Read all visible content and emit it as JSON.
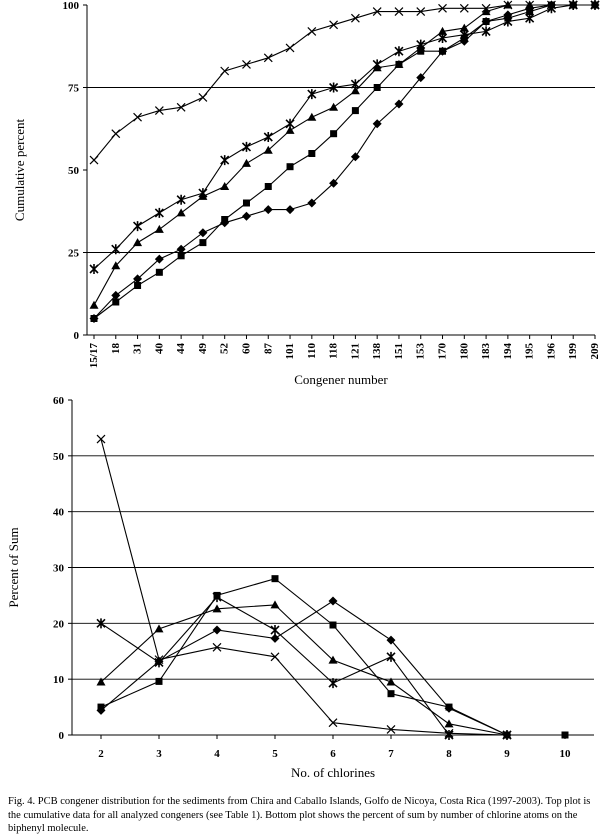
{
  "chart_data": [
    {
      "type": "line",
      "title": "",
      "xlabel": "Congener  number",
      "ylabel": "Cumulative percent",
      "ylim": [
        0,
        100
      ],
      "yticks": [
        "0",
        "25",
        "50",
        "75",
        "100"
      ],
      "grid": "horizontal lines at 25 and 75",
      "categories": [
        "15/17",
        "18",
        "31",
        "40",
        "44",
        "49",
        "52",
        "60",
        "87",
        "101",
        "110",
        "118",
        "121",
        "138",
        "151",
        "153",
        "170",
        "180",
        "183",
        "194",
        "195",
        "196",
        "199",
        "209"
      ],
      "series": [
        {
          "marker": "x",
          "values": [
            53,
            61,
            66,
            68,
            69,
            72,
            80,
            82,
            84,
            87,
            92,
            94,
            96,
            98,
            98,
            98,
            99,
            99,
            99,
            100,
            100,
            100,
            100,
            100
          ]
        },
        {
          "marker": "asterisk",
          "values": [
            20,
            26,
            33,
            37,
            41,
            43,
            53,
            57,
            60,
            64,
            73,
            75,
            76,
            82,
            86,
            88,
            90,
            91,
            92,
            95,
            96,
            99,
            100,
            100
          ]
        },
        {
          "marker": "triangle",
          "values": [
            9,
            21,
            28,
            32,
            37,
            42,
            45,
            52,
            56,
            62,
            66,
            69,
            74,
            81,
            82,
            87,
            92,
            93,
            98,
            100,
            100,
            100,
            100,
            100
          ]
        },
        {
          "marker": "square",
          "values": [
            5,
            10,
            15,
            19,
            24,
            28,
            35,
            40,
            45,
            51,
            55,
            61,
            68,
            75,
            82,
            86,
            86,
            90,
            95,
            96,
            98,
            100,
            100,
            100
          ]
        },
        {
          "marker": "diamond",
          "values": [
            5,
            12,
            17,
            23,
            26,
            31,
            34,
            36,
            38,
            38,
            40,
            46,
            54,
            64,
            70,
            78,
            86,
            89,
            95,
            97,
            99,
            100,
            100,
            100
          ]
        }
      ]
    },
    {
      "type": "line",
      "title": "",
      "xlabel": "No. of chlorines",
      "ylabel": "Percent of Sum",
      "ylim": [
        0,
        60
      ],
      "yticks": [
        "0",
        "10",
        "20",
        "30",
        "40",
        "50",
        "60"
      ],
      "grid": "horizontal lines every 10",
      "categories": [
        "2",
        "3",
        "4",
        "5",
        "6",
        "7",
        "8",
        "9",
        "10"
      ],
      "series": [
        {
          "marker": "x",
          "values": [
            53,
            13.5,
            15.7,
            14,
            2.2,
            1,
            0.3,
            0,
            null
          ]
        },
        {
          "marker": "asterisk",
          "values": [
            20,
            13,
            24.7,
            18.8,
            9.3,
            14,
            0,
            0,
            null
          ]
        },
        {
          "marker": "triangle",
          "values": [
            9.5,
            19,
            22.6,
            23.3,
            13.4,
            9.5,
            2,
            0,
            null
          ]
        },
        {
          "marker": "square",
          "values": [
            5,
            9.6,
            25,
            28,
            19.7,
            7.4,
            5,
            0,
            0
          ]
        },
        {
          "marker": "diamond",
          "values": [
            4.4,
            13.2,
            18.8,
            17.3,
            24,
            17,
            4.8,
            0,
            null
          ]
        }
      ]
    }
  ],
  "caption": "Fig. 4.  PCB congener distribution for the sediments from Chira and Caballo Islands, Golfo de Nicoya, Costa Rica (1997-2003).  Top plot is the cumulative data for all analyzed congeners (see Table 1).  Bottom plot shows the percent of sum by number of chlorine atoms on the biphenyl molecule."
}
